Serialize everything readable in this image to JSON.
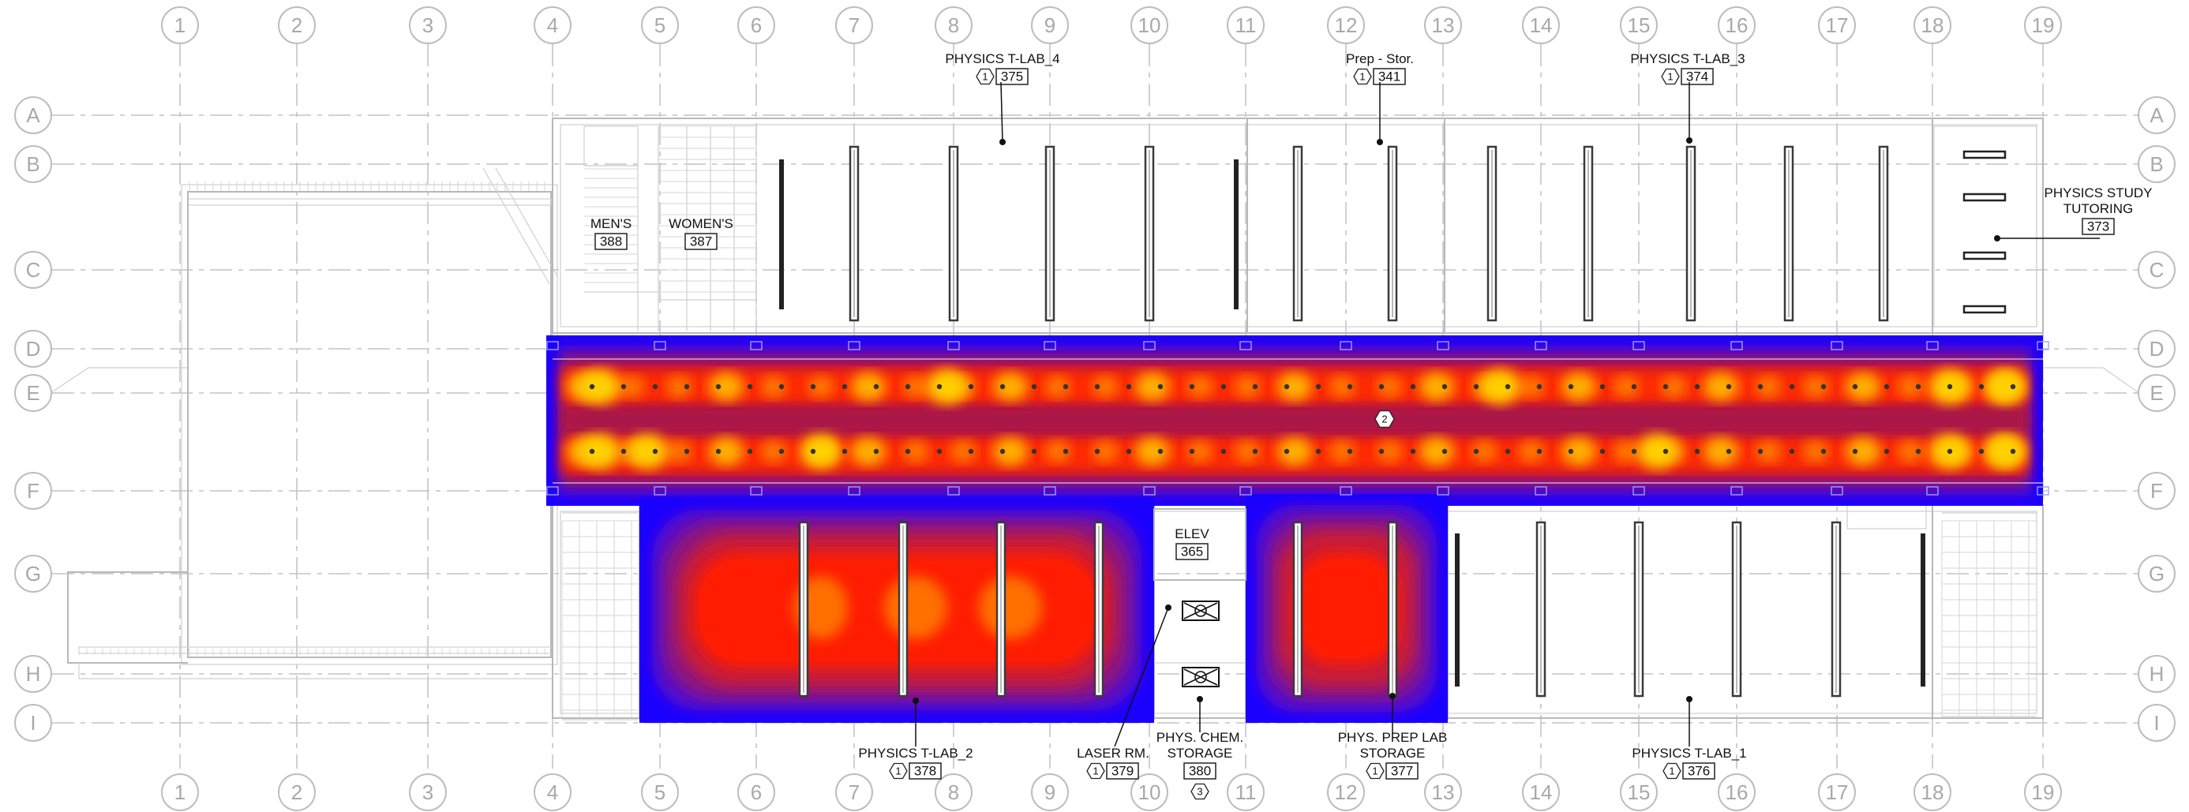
{
  "grid": {
    "columns": [
      "1",
      "2",
      "3",
      "4",
      "5",
      "6",
      "7",
      "8",
      "9",
      "10",
      "11",
      "12",
      "13",
      "14",
      "15",
      "16",
      "17",
      "18",
      "19"
    ],
    "rows": [
      "A",
      "B",
      "C",
      "D",
      "E",
      "F",
      "G",
      "H",
      "I"
    ]
  },
  "colors": {
    "heat_outer": "#1a00ff",
    "heat_mid": "#6a0dad",
    "heat_purple": "#9b1b6e",
    "heat_red": "#ff1a00",
    "heat_orange": "#ff7a00",
    "heat_yellow": "#ffc400",
    "bench": "#3a3a3a"
  },
  "rooms": [
    {
      "name": "PHYSICS T-LAB_4",
      "number": "375",
      "tag": "1"
    },
    {
      "name": "Prep - Stor.",
      "number": "341",
      "tag": "1"
    },
    {
      "name": "PHYSICS T-LAB_3",
      "number": "374",
      "tag": "1"
    },
    {
      "name": "PHYSICS STUDY",
      "name2": "TUTORING",
      "number": "373"
    },
    {
      "name": "MEN'S",
      "number": "388"
    },
    {
      "name": "WOMEN'S",
      "number": "387"
    },
    {
      "name": "ELEV",
      "number": "365"
    },
    {
      "name": "PHYSICS T-LAB_2",
      "number": "378",
      "tag": "1"
    },
    {
      "name": "LASER RM.",
      "number": "379",
      "tag": "1"
    },
    {
      "name": "PHYS. CHEM.",
      "name2": "STORAGE",
      "number": "380",
      "tag": "3"
    },
    {
      "name": "PHYS. PREP LAB",
      "name2": "STORAGE",
      "number": "377",
      "tag": "1"
    },
    {
      "name": "PHYSICS T-LAB_1",
      "number": "376",
      "tag": "1"
    }
  ],
  "corridor_tag": "2"
}
